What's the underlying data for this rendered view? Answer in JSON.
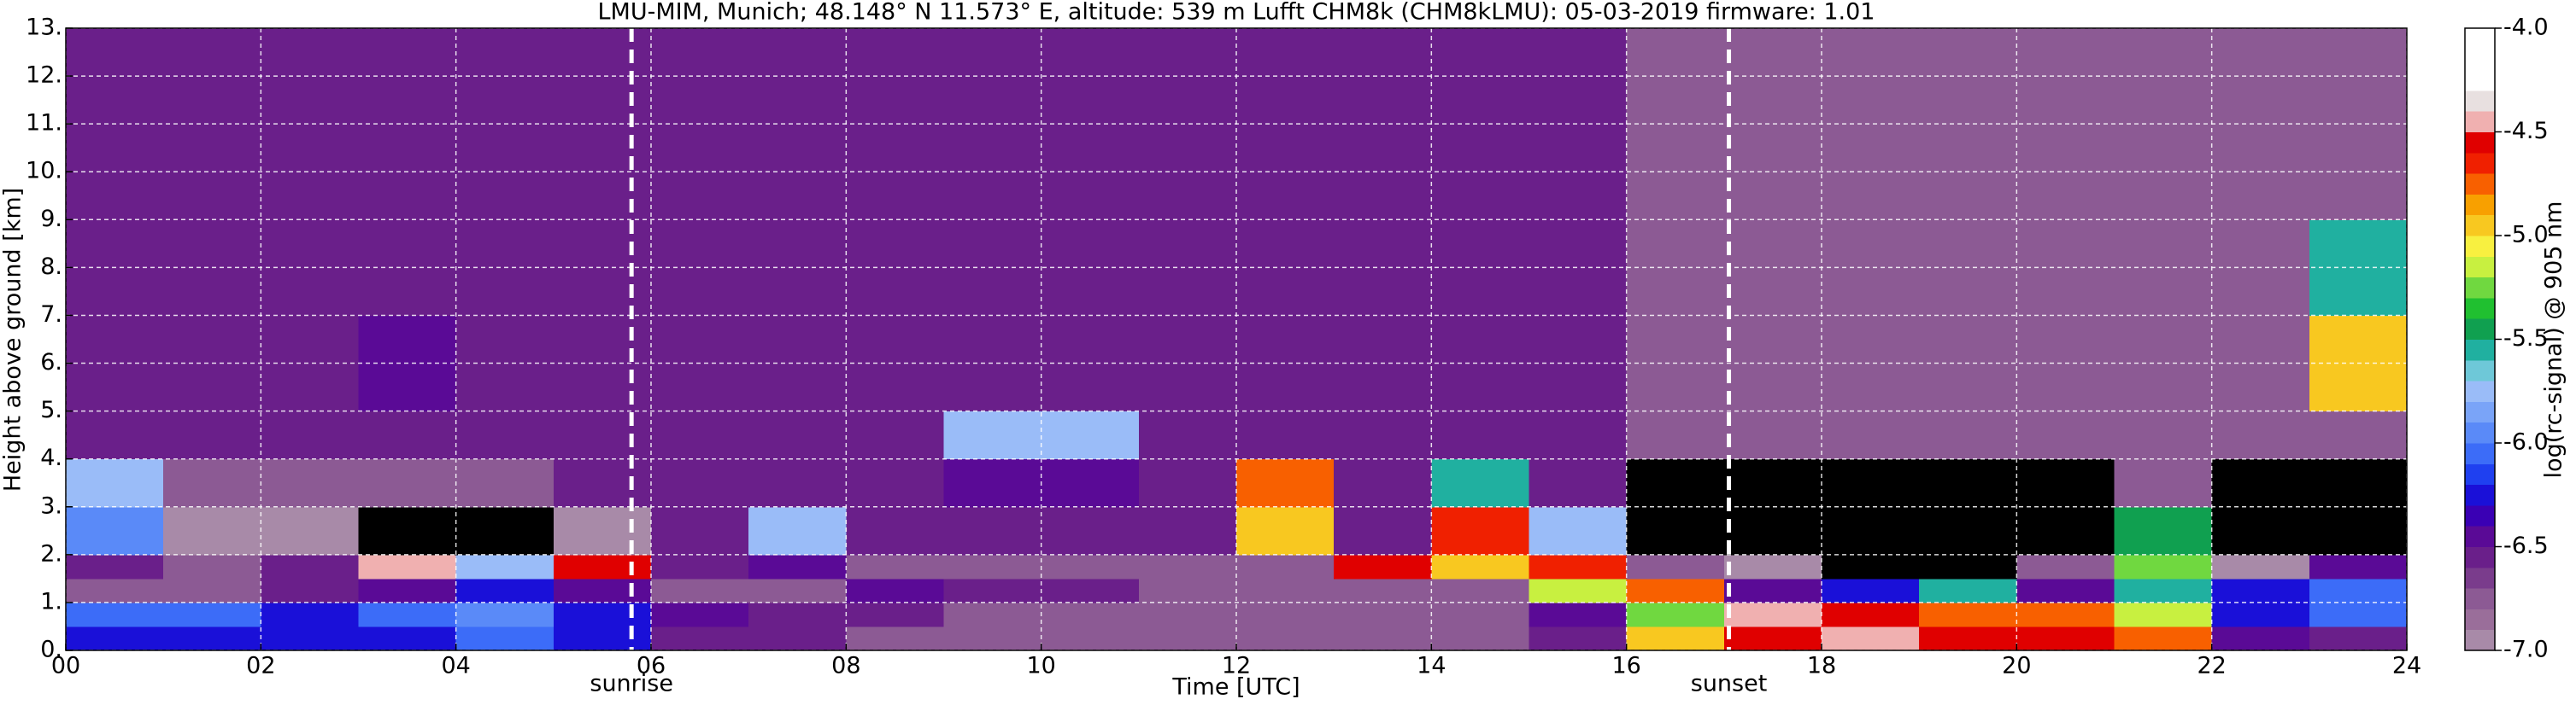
{
  "chart_data": {
    "type": "heatmap",
    "title": "LMU-MIM, Munich; 48.148° N 11.573° E, altitude: 539 m    Lufft CHM8k (CHM8kLMU): 05-03-2019    firmware: 1.01",
    "xlabel": "Time [UTC]",
    "ylabel": "Height above ground [km]",
    "colorbar_label": "log(rc-signal) @ 905 nm",
    "xlim": [
      0,
      24
    ],
    "ylim": [
      0,
      13
    ],
    "xticks": [
      {
        "value": 0,
        "label": "00"
      },
      {
        "value": 2,
        "label": "02"
      },
      {
        "value": 4,
        "label": "04"
      },
      {
        "value": 6,
        "label": "06"
      },
      {
        "value": 8,
        "label": "08"
      },
      {
        "value": 10,
        "label": "10"
      },
      {
        "value": 12,
        "label": "12"
      },
      {
        "value": 14,
        "label": "14"
      },
      {
        "value": 16,
        "label": "16"
      },
      {
        "value": 18,
        "label": "18"
      },
      {
        "value": 20,
        "label": "20"
      },
      {
        "value": 22,
        "label": "22"
      },
      {
        "value": 24,
        "label": "24"
      }
    ],
    "yticks": [
      {
        "value": 0,
        "label": "0."
      },
      {
        "value": 1,
        "label": "1."
      },
      {
        "value": 2,
        "label": "2."
      },
      {
        "value": 3,
        "label": "3."
      },
      {
        "value": 4,
        "label": "4."
      },
      {
        "value": 5,
        "label": "5."
      },
      {
        "value": 6,
        "label": "6."
      },
      {
        "value": 7,
        "label": "7."
      },
      {
        "value": 8,
        "label": "8."
      },
      {
        "value": 9,
        "label": "9."
      },
      {
        "value": 10,
        "label": "10."
      },
      {
        "value": 11,
        "label": "11."
      },
      {
        "value": 12,
        "label": "12."
      },
      {
        "value": 13,
        "label": "13."
      }
    ],
    "grid": true,
    "annotations": [
      {
        "text": "sunrise",
        "x": 5.8
      },
      {
        "text": "sunset",
        "x": 17.05
      }
    ],
    "clim": [
      -7,
      -4
    ],
    "cticks": [
      {
        "value": -4,
        "label": "-4.0"
      },
      {
        "value": -4.5,
        "label": "-4.5"
      },
      {
        "value": -5,
        "label": "-5.0"
      },
      {
        "value": -5.5,
        "label": "-5.5"
      },
      {
        "value": -6,
        "label": "-6.0"
      },
      {
        "value": -6.5,
        "label": "-6.5"
      },
      {
        "value": -7,
        "label": "-7.0"
      }
    ],
    "colormap": [
      "#a88aa8",
      "#9a6e9a",
      "#8c5a94",
      "#7a3c8c",
      "#6a1f8a",
      "#5a0a96",
      "#3a00b4",
      "#1a10d8",
      "#1f40f0",
      "#3c6cf8",
      "#5a8af8",
      "#7aa4f8",
      "#9abcf8",
      "#6ec8d8",
      "#20b0a0",
      "#10a050",
      "#20c030",
      "#70d840",
      "#c8f040",
      "#f8f040",
      "#f8c820",
      "#f8a000",
      "#f86000",
      "#f02000",
      "#e00000",
      "#f0b0b0",
      "#e8e0e0",
      "#ffffff",
      "#ffffff",
      "#ffffff"
    ],
    "under_color": "#000000",
    "x_edges": [
      0,
      1,
      2,
      3,
      4,
      5,
      6,
      7,
      8,
      9,
      10,
      11,
      12,
      13,
      14,
      15,
      16,
      17,
      18,
      19,
      20,
      21,
      22,
      23,
      24
    ],
    "y_edges": [
      0,
      0.5,
      1,
      1.5,
      2,
      3,
      4,
      5,
      7,
      9,
      13
    ],
    "z": [
      [
        -6.3,
        -6.3,
        -6.3,
        -6.3,
        -6.1,
        -6.3,
        -6.6,
        -6.6,
        -6.7,
        -6.7,
        -6.7,
        -6.7,
        -6.7,
        -6.7,
        -6.7,
        -6.6,
        -5.0,
        -4.6,
        -4.5,
        -4.6,
        -4.6,
        -4.8,
        -6.5,
        -6.6
      ],
      [
        -6.1,
        -6.1,
        -6.2,
        -6.1,
        -6.0,
        -6.2,
        -6.4,
        -6.6,
        -6.6,
        -6.7,
        -6.7,
        -6.7,
        -6.7,
        -6.7,
        -6.7,
        -6.5,
        -5.3,
        -4.4,
        -4.6,
        -4.8,
        -4.8,
        -5.2,
        -6.2,
        -6.1
      ],
      [
        -6.7,
        -6.7,
        -6.6,
        -6.4,
        -6.3,
        -6.5,
        -6.8,
        -6.8,
        -6.5,
        -6.6,
        -6.6,
        -6.7,
        -6.8,
        -6.8,
        -6.7,
        -5.2,
        -4.8,
        -6.4,
        -6.3,
        -5.6,
        -6.4,
        -5.6,
        -6.2,
        -6.1
      ],
      [
        -6.6,
        -6.7,
        -6.6,
        -4.5,
        -5.8,
        -4.6,
        -6.6,
        -6.4,
        -6.8,
        -6.8,
        -6.8,
        -6.8,
        -6.8,
        -4.6,
        -4.9,
        -4.7,
        -6.8,
        -6.9,
        -7.2,
        -7.3,
        -6.8,
        -5.3,
        -6.9,
        -6.5
      ],
      [
        -6.0,
        -6.9,
        -6.9,
        -7.2,
        -7.2,
        -7.0,
        -6.6,
        -5.8,
        -6.6,
        -6.6,
        -6.6,
        -6.6,
        -5.0,
        -6.6,
        -4.7,
        -5.8,
        -7.3,
        -7.3,
        -7.3,
        -7.3,
        -7.3,
        -5.4,
        -7.3,
        -7.2
      ],
      [
        -5.8,
        -6.8,
        -6.8,
        -6.8,
        -6.8,
        -6.6,
        -6.6,
        -6.6,
        -6.6,
        -6.5,
        -6.5,
        -6.6,
        -4.8,
        -6.6,
        -5.6,
        -6.6,
        -7.2,
        -7.2,
        -7.2,
        -7.2,
        -7.2,
        -6.8,
        -7.2,
        -7.2
      ],
      [
        -6.6,
        -6.6,
        -6.6,
        -6.6,
        -6.6,
        -6.6,
        -6.6,
        -6.6,
        -6.6,
        -5.8,
        -5.8,
        -6.6,
        -6.6,
        -6.6,
        -6.6,
        -6.6,
        -6.7,
        -6.7,
        -6.7,
        -6.7,
        -6.7,
        -6.7,
        -6.7,
        -6.7
      ],
      [
        -6.6,
        -6.6,
        -6.6,
        -6.4,
        -6.6,
        -6.6,
        -6.6,
        -6.6,
        -6.6,
        -6.6,
        -6.6,
        -6.6,
        -6.6,
        -6.6,
        -6.6,
        -6.6,
        -6.7,
        -6.7,
        -6.7,
        -6.7,
        -6.7,
        -6.7,
        -6.7,
        -5.0
      ],
      [
        -6.6,
        -6.6,
        -6.6,
        -6.6,
        -6.6,
        -6.6,
        -6.6,
        -6.6,
        -6.6,
        -6.6,
        -6.6,
        -6.6,
        -6.6,
        -6.6,
        -6.6,
        -6.6,
        -6.7,
        -6.7,
        -6.7,
        -6.7,
        -6.7,
        -6.7,
        -6.7,
        -5.6
      ],
      [
        -6.6,
        -6.6,
        -6.6,
        -6.6,
        -6.6,
        -6.6,
        -6.6,
        -6.6,
        -6.6,
        -6.6,
        -6.6,
        -6.6,
        -6.6,
        -6.6,
        -6.6,
        -6.6,
        -6.7,
        -6.7,
        -6.7,
        -6.7,
        -6.7,
        -6.7,
        -6.7,
        -6.7
      ]
    ]
  }
}
